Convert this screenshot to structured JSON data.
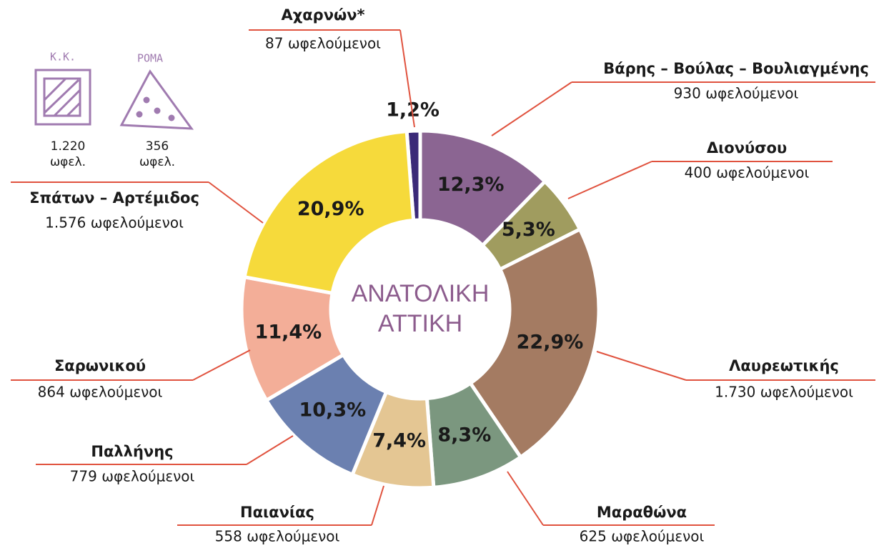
{
  "chart_data": {
    "type": "donut",
    "center_label": [
      "ΑΝΑΤΟΛΙΚΗ",
      "ΑΤΤΙΚΗ"
    ],
    "categories": [
      "Αχαρνών*",
      "Βάρης – Βούλας – Βουλιαγμένης",
      "Διονύσου",
      "Λαυρεωτικής",
      "Μαραθώνα",
      "Παιανίας",
      "Παλλήνης",
      "Σαρωνικού",
      "Σπάτων – Αρτέμιδος"
    ],
    "values": [
      1.2,
      12.3,
      5.3,
      22.9,
      8.3,
      7.4,
      10.3,
      11.4,
      20.9
    ],
    "value_labels": [
      "1,2%",
      "12,3%",
      "5,3%",
      "22,9%",
      "8,3%",
      "7,4%",
      "10,3%",
      "11,4%",
      "20,9%"
    ],
    "counts": [
      "87 ωφελούμενοι",
      "930 ωφελούμενοι",
      "400 ωφελούμενοι",
      "1.730 ωφελούμενοι",
      "625 ωφελούμενοι",
      "558 ωφελούμενοι",
      "779 ωφελούμενοι",
      "864 ωφελούμενοι",
      "1.576 ωφελούμενοι"
    ],
    "colors": [
      "#3b2a78",
      "#8b6592",
      "#a09c5f",
      "#a47b62",
      "#7b977f",
      "#e4c693",
      "#6b80b0",
      "#f3ae98",
      "#f6da3b"
    ],
    "label_line_color": "#e0523e",
    "center_color": "#8c5c8d"
  },
  "icons": [
    {
      "label": "Κ.Κ.",
      "lines": [
        "1.220",
        "ωφελ."
      ]
    },
    {
      "label": "ΡΟΜΑ",
      "lines": [
        "356",
        "ωφελ."
      ]
    }
  ]
}
